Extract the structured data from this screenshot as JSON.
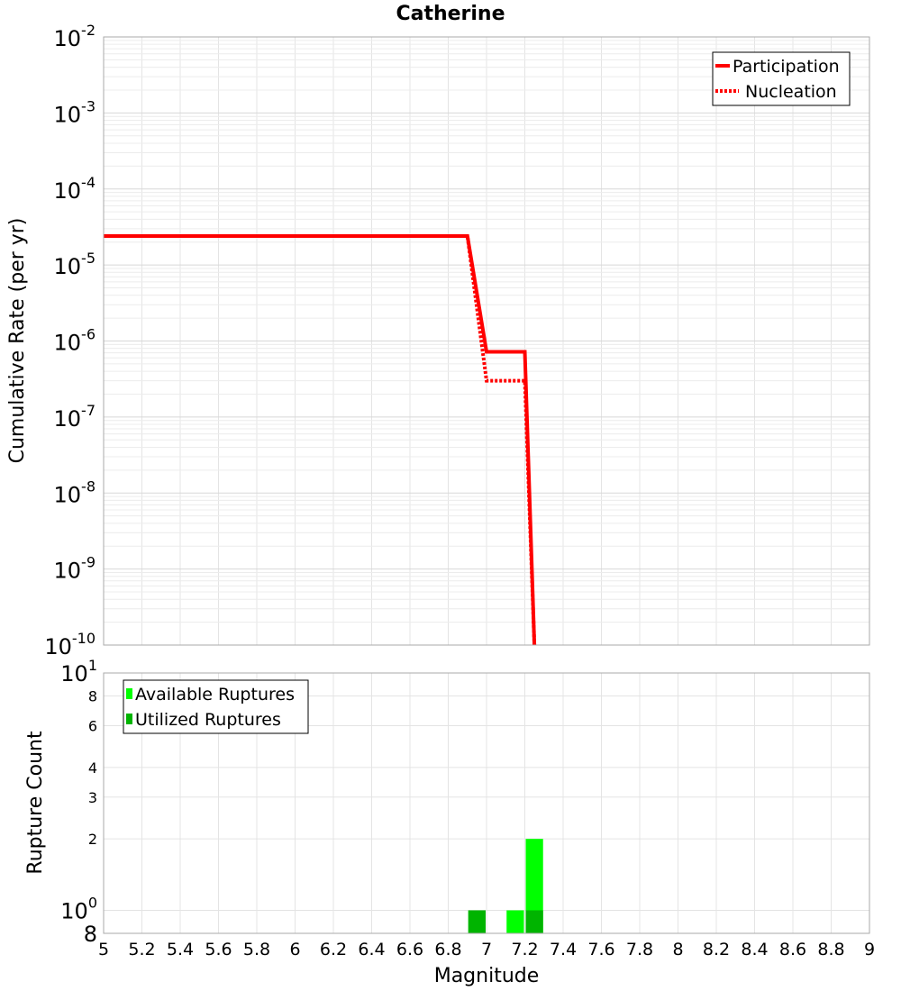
{
  "chart_data": [
    {
      "type": "line",
      "title": "Catherine",
      "ylabel": "Cumulative Rate (per yr)",
      "xlabel": "",
      "y_scale": "log",
      "ylim": [
        1e-10,
        0.01
      ],
      "xlim": [
        5,
        9
      ],
      "y_ticks": [
        {
          "base": "10",
          "exp": "-2"
        },
        {
          "base": "10",
          "exp": "-3"
        },
        {
          "base": "10",
          "exp": "-4"
        },
        {
          "base": "10",
          "exp": "-5"
        },
        {
          "base": "10",
          "exp": "-6"
        },
        {
          "base": "10",
          "exp": "-7"
        },
        {
          "base": "10",
          "exp": "-8"
        },
        {
          "base": "10",
          "exp": "-9"
        },
        {
          "base": "10",
          "exp": "-10"
        }
      ],
      "grid": true,
      "legend_position": "top-right",
      "series": [
        {
          "name": "Participation",
          "style": "solid",
          "color": "#ff0000",
          "points": [
            [
              5.0,
              2.4e-05
            ],
            [
              6.9,
              2.4e-05
            ],
            [
              7.0,
              7.2e-07
            ],
            [
              7.2,
              7.2e-07
            ],
            [
              7.25,
              1e-10
            ]
          ]
        },
        {
          "name": "Nucleation",
          "style": "dotted",
          "color": "#ff0000",
          "points": [
            [
              5.0,
              2.4e-05
            ],
            [
              6.9,
              2.4e-05
            ],
            [
              7.0,
              3e-07
            ],
            [
              7.2,
              3e-07
            ],
            [
              7.25,
              1e-10
            ]
          ]
        }
      ]
    },
    {
      "type": "bar",
      "ylabel": "Rupture Count",
      "xlabel": "Magnitude",
      "y_scale": "log",
      "ylim": [
        0.8,
        10
      ],
      "xlim": [
        5,
        9
      ],
      "x_ticks": [
        "5",
        "5.2",
        "5.4",
        "5.6",
        "5.8",
        "6",
        "6.2",
        "6.4",
        "6.6",
        "6.8",
        "7",
        "7.2",
        "7.4",
        "7.6",
        "7.8",
        "8",
        "8.2",
        "8.4",
        "8.6",
        "8.8",
        "9"
      ],
      "y_ticks": [
        {
          "value": 10,
          "label": "10",
          "exp": "1"
        },
        {
          "value": 8,
          "label": "8",
          "exp": ""
        },
        {
          "value": 6,
          "label": "6",
          "exp": ""
        },
        {
          "value": 4,
          "label": "4",
          "exp": ""
        },
        {
          "value": 3,
          "label": "3",
          "exp": ""
        },
        {
          "value": 2,
          "label": "2",
          "exp": ""
        },
        {
          "value": 1,
          "label": "10",
          "exp": "0"
        },
        {
          "value": 0.8,
          "label": "8",
          "exp": ""
        }
      ],
      "grid": true,
      "legend_position": "top-left",
      "bar_width": 0.1,
      "series": [
        {
          "name": "Available Ruptures",
          "color": "#00ff00",
          "bars": [
            {
              "x": 6.95,
              "value": 1
            },
            {
              "x": 7.15,
              "value": 1
            },
            {
              "x": 7.25,
              "value": 2
            }
          ]
        },
        {
          "name": "Utilized Ruptures",
          "color": "#00b400",
          "bars": [
            {
              "x": 6.95,
              "value": 1
            },
            {
              "x": 7.25,
              "value": 1
            }
          ]
        }
      ]
    }
  ]
}
